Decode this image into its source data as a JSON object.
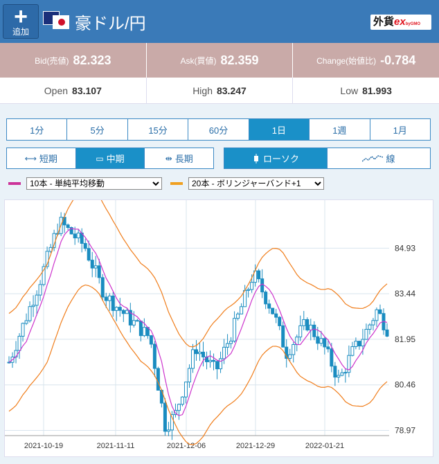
{
  "header": {
    "add_label": "追加",
    "pair": "豪ドル/円",
    "brand_prefix": "外貨",
    "brand_ex": "ex",
    "brand_small": "byGMO"
  },
  "quotes": {
    "bid_label": "Bid(売値)",
    "bid": "82.323",
    "ask_label": "Ask(買値)",
    "ask": "82.359",
    "change_label": "Change(始値比)",
    "change": "-0.784",
    "open_label": "Open",
    "open": "83.107",
    "high_label": "High",
    "high": "83.247",
    "low_label": "Low",
    "low": "81.993"
  },
  "periods": [
    "1分",
    "5分",
    "15分",
    "60分",
    "1日",
    "1週",
    "1月"
  ],
  "active_period": "1日",
  "ranges": [
    {
      "icon": "⟷",
      "label": "短期"
    },
    {
      "icon": "▭",
      "label": "中期"
    },
    {
      "icon": "⇹",
      "label": "長期"
    }
  ],
  "active_range": "中期",
  "chart_types": [
    {
      "icon": "candle",
      "label": "ローソク"
    },
    {
      "icon": "line",
      "label": "線"
    }
  ],
  "active_chart_type": "ローソク",
  "indicators": {
    "ma_color": "#cc3399",
    "ma_select": "10本 - 単純平均移動",
    "bb_color": "#f0a020",
    "bb_select": "20本 - ボリンジャーバンド+1"
  },
  "chart_data": {
    "type": "candlestick",
    "y_ticks": [
      "84.93",
      "83.44",
      "81.95",
      "80.46",
      "78.97"
    ],
    "x_ticks": [
      "2021-10-19",
      "2021-11-11",
      "2021-12-06",
      "2021-12-29",
      "2022-01-21"
    ],
    "ylim": [
      78.8,
      86.5
    ],
    "colors": {
      "candle": "#1a8cc0",
      "ma": "#cc33cc",
      "band": "#f07d1a",
      "grid": "#d8e4ee"
    }
  }
}
